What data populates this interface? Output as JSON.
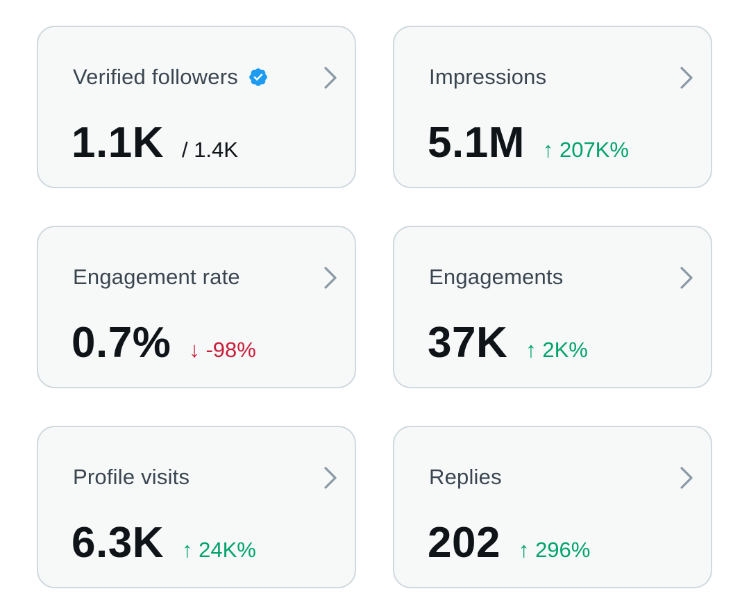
{
  "colors": {
    "card_bg": "#f7f9f9",
    "card_border": "#cfd9de",
    "title_text": "#3a4550",
    "value_text": "#0f1419",
    "positive": "#00a36c",
    "negative": "#c81e3a",
    "verified_blue": "#1d9bf0",
    "chevron": "#8b98a5"
  },
  "cards": [
    {
      "title": "Verified followers",
      "icon": "verified-badge-icon",
      "value": "1.1K",
      "total": "/ 1.4K"
    },
    {
      "title": "Impressions",
      "value": "5.1M",
      "change": "↑ 207K%",
      "trend": "up"
    },
    {
      "title": "Engagement rate",
      "value": "0.7%",
      "change": "↓ -98%",
      "trend": "down"
    },
    {
      "title": "Engagements",
      "value": "37K",
      "change": "↑ 2K%",
      "trend": "up"
    },
    {
      "title": "Profile visits",
      "value": "6.3K",
      "change": "↑ 24K%",
      "trend": "up"
    },
    {
      "title": "Replies",
      "value": "202",
      "change": "↑ 296%",
      "trend": "up"
    }
  ]
}
